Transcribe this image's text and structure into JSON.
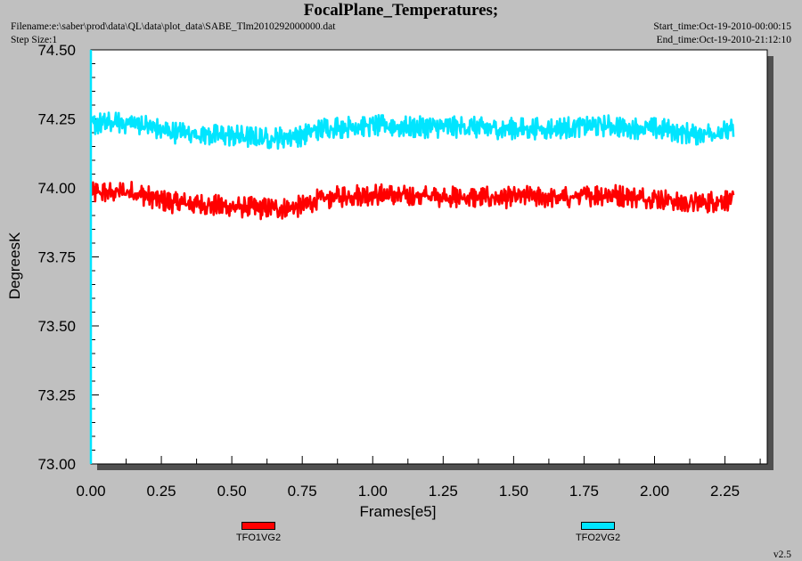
{
  "header": {
    "title": "FocalPlane_Temperatures;",
    "filename": "Filename:e:\\saber\\prod\\data\\QL\\data\\plot_data\\SABE_Tlm2010292000000.dat",
    "step_size": "Step Size:1",
    "start_time": "Start_time:Oct-19-2010-00:00:15",
    "end_time": "End_time:Oct-19-2010-21:12:10"
  },
  "version": "v2.5",
  "colors": {
    "background": "#c0c0c0",
    "plot_area": "#ffffff",
    "axis": "#00e5ff"
  },
  "chart_data": {
    "type": "line",
    "title": "FocalPlane_Temperatures;",
    "xlabel": "Frames[e5]",
    "ylabel": "DegreesK",
    "xlim": [
      0.0,
      2.4
    ],
    "ylim": [
      73.0,
      74.5
    ],
    "xticks": [
      "0.00",
      "0.25",
      "0.50",
      "0.75",
      "1.00",
      "1.25",
      "1.50",
      "1.75",
      "2.00",
      "2.25"
    ],
    "yticks": [
      "74.50",
      "74.25",
      "74.00",
      "73.75",
      "73.50",
      "73.25",
      "73.00"
    ],
    "grid": false,
    "legend_position": "bottom",
    "series": [
      {
        "name": "TFO1VG2",
        "color": "#ff0000",
        "x": [
          0.0,
          0.05,
          0.1,
          0.15,
          0.2,
          0.25,
          0.3,
          0.35,
          0.4,
          0.45,
          0.5,
          0.55,
          0.6,
          0.65,
          0.7,
          0.75,
          0.8,
          0.85,
          0.9,
          0.95,
          1.0,
          1.05,
          1.1,
          1.15,
          1.2,
          1.25,
          1.3,
          1.35,
          1.4,
          1.45,
          1.5,
          1.55,
          1.6,
          1.65,
          1.7,
          1.75,
          1.8,
          1.85,
          1.9,
          1.95,
          2.0,
          2.05,
          2.1,
          2.15,
          2.2,
          2.25,
          2.28
        ],
        "y": [
          73.98,
          73.985,
          73.985,
          73.985,
          73.97,
          73.955,
          73.945,
          73.945,
          73.94,
          73.935,
          73.93,
          73.93,
          73.925,
          73.925,
          73.925,
          73.935,
          73.955,
          73.965,
          73.97,
          73.975,
          73.975,
          73.975,
          73.97,
          73.97,
          73.97,
          73.97,
          73.965,
          73.965,
          73.965,
          73.965,
          73.965,
          73.97,
          73.965,
          73.965,
          73.965,
          73.97,
          73.975,
          73.975,
          73.97,
          73.965,
          73.965,
          73.955,
          73.945,
          73.945,
          73.95,
          73.955,
          73.96
        ]
      },
      {
        "name": "TFO2VG2",
        "color": "#00e5ff",
        "x": [
          0.0,
          0.05,
          0.1,
          0.15,
          0.2,
          0.25,
          0.3,
          0.35,
          0.4,
          0.45,
          0.5,
          0.55,
          0.6,
          0.65,
          0.7,
          0.75,
          0.8,
          0.85,
          0.9,
          0.95,
          1.0,
          1.05,
          1.1,
          1.15,
          1.2,
          1.25,
          1.3,
          1.35,
          1.4,
          1.45,
          1.5,
          1.55,
          1.6,
          1.65,
          1.7,
          1.75,
          1.8,
          1.85,
          1.9,
          1.95,
          2.0,
          2.05,
          2.1,
          2.15,
          2.2,
          2.25,
          2.28
        ],
        "y": [
          74.23,
          74.235,
          74.235,
          74.235,
          74.225,
          74.21,
          74.2,
          74.2,
          74.195,
          74.19,
          74.19,
          74.185,
          74.18,
          74.18,
          74.185,
          74.19,
          74.21,
          74.22,
          74.22,
          74.225,
          74.225,
          74.225,
          74.22,
          74.22,
          74.22,
          74.22,
          74.22,
          74.22,
          74.215,
          74.215,
          74.215,
          74.215,
          74.215,
          74.215,
          74.22,
          74.225,
          74.225,
          74.225,
          74.22,
          74.215,
          74.215,
          74.21,
          74.2,
          74.195,
          74.2,
          74.205,
          74.21
        ]
      }
    ]
  }
}
